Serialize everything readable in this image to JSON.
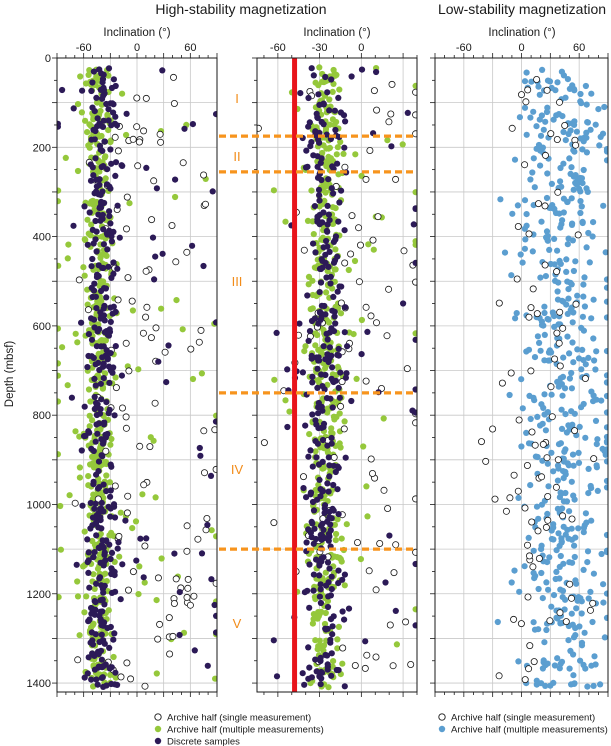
{
  "chart_data": {
    "type": "scatter",
    "group_titles": [
      "High-stability magnetization",
      "Low-stability magnetization"
    ],
    "ylabel": "Depth (mbsf)",
    "ylim": [
      0,
      1420
    ],
    "yticks": [
      "0",
      "200",
      "400",
      "600",
      "800",
      "1000",
      "1200",
      "1400"
    ],
    "grid": true,
    "colors": {
      "archive_single": "#1a1a1a",
      "archive_multiple": "#95c83b",
      "discrete": "#2c1a57",
      "low_stability_multiple": "#5b9ed0",
      "unit_boundary": "#f7941d",
      "reference_line": "#e8141b",
      "grid": "#c8c8c8"
    },
    "unit_boundaries": [
      175,
      255,
      750,
      1100
    ],
    "units": [
      {
        "label": "I",
        "depth": 90
      },
      {
        "label": "II",
        "depth": 220
      },
      {
        "label": "III",
        "depth": 500
      },
      {
        "label": "IV",
        "depth": 920
      },
      {
        "label": "V",
        "depth": 1265
      }
    ],
    "panels": [
      {
        "xlabel": "Inclination (°)",
        "xlim": [
          -90,
          90
        ],
        "xticks": [
          "-60",
          "0",
          "60"
        ],
        "xtick_values": [
          -60,
          0,
          60
        ],
        "series": [
          "archive_multiple",
          "archive_single",
          "discrete"
        ]
      },
      {
        "xlabel": "Inclination (°)",
        "xlim": [
          -75,
          40
        ],
        "xticks": [
          "-60",
          "-30",
          "0"
        ],
        "xtick_values": [
          -60,
          -30,
          0
        ],
        "reference_inclination": -48,
        "series": [
          "archive_multiple",
          "archive_single",
          "discrete"
        ]
      },
      {
        "xlabel": "Inclination (°)",
        "xlim": [
          -90,
          90
        ],
        "xticks": [
          "-60",
          "0",
          "60"
        ],
        "xtick_values": [
          -60,
          0,
          60
        ],
        "series": [
          "low_stability_multiple",
          "archive_single"
        ]
      }
    ],
    "series_profiles": {
      "panel_a": {
        "archive_multiple": {
          "center": -43,
          "spread": 8,
          "count": 520,
          "outlier_fraction": 0.12
        },
        "discrete": {
          "center": -40,
          "spread": 9,
          "count": 420,
          "outlier_fraction": 0.14
        },
        "archive_single": {
          "center": 10,
          "spread": 40,
          "count": 110,
          "outlier_fraction": 0
        }
      },
      "panel_b": {
        "archive_multiple": {
          "center": -25,
          "spread": 6,
          "count": 480,
          "outlier_fraction": 0.1
        },
        "discrete": {
          "center": -27,
          "spread": 7,
          "count": 360,
          "outlier_fraction": 0.12
        },
        "archive_single": {
          "center": 0,
          "spread": 28,
          "count": 90,
          "outlier_fraction": 0
        }
      },
      "panel_c": {
        "low_stability_multiple": {
          "center": 42,
          "spread": 22,
          "count": 560,
          "outlier_fraction": 0.08
        },
        "archive_single": {
          "center": 15,
          "spread": 30,
          "count": 90,
          "outlier_fraction": 0
        }
      }
    },
    "legend": [
      {
        "label": "Archive half (single measurement)",
        "series": "archive_single"
      },
      {
        "label": "Archive half (multiple measurements)",
        "series": "archive_multiple"
      },
      {
        "label": "Discrete samples",
        "series": "discrete"
      },
      {
        "label": "Archive half (single measurement)",
        "series": "archive_single"
      },
      {
        "label": "Archive half (multiple measurements)",
        "series": "low_stability_multiple"
      }
    ]
  }
}
